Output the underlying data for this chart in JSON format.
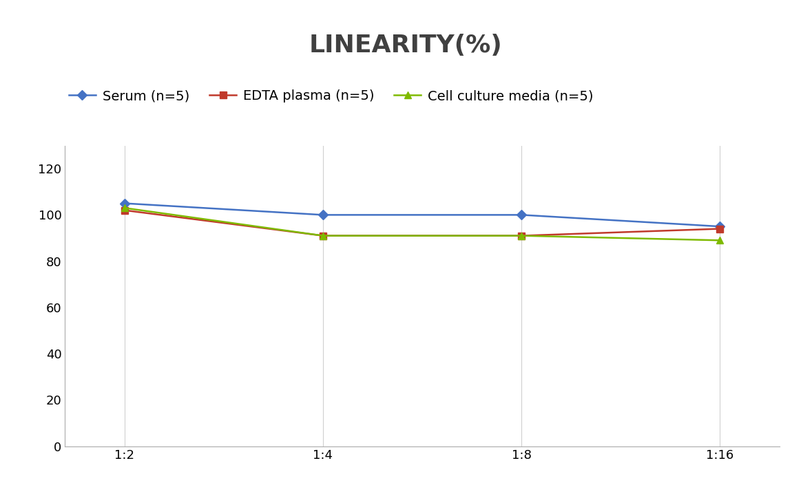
{
  "title": "LINEARITY(%)",
  "x_labels": [
    "1:2",
    "1:4",
    "1:8",
    "1:16"
  ],
  "x_values": [
    0,
    1,
    2,
    3
  ],
  "series": [
    {
      "label": "Serum (n=5)",
      "values": [
        105,
        100,
        100,
        95
      ],
      "color": "#4472C4",
      "marker": "D",
      "marker_size": 7,
      "linewidth": 1.8
    },
    {
      "label": "EDTA plasma (n=5)",
      "values": [
        102,
        91,
        91,
        94
      ],
      "color": "#C0392B",
      "marker": "s",
      "marker_size": 7,
      "linewidth": 1.8
    },
    {
      "label": "Cell culture media (n=5)",
      "values": [
        103,
        91,
        91,
        89
      ],
      "color": "#7FBA00",
      "marker": "^",
      "marker_size": 7,
      "linewidth": 1.8
    }
  ],
  "ylim": [
    0,
    130
  ],
  "yticks": [
    0,
    20,
    40,
    60,
    80,
    100,
    120
  ],
  "grid_color": "#D0D0D0",
  "background_color": "#FFFFFF",
  "title_fontsize": 26,
  "legend_fontsize": 14,
  "tick_fontsize": 13,
  "title_color": "#404040"
}
